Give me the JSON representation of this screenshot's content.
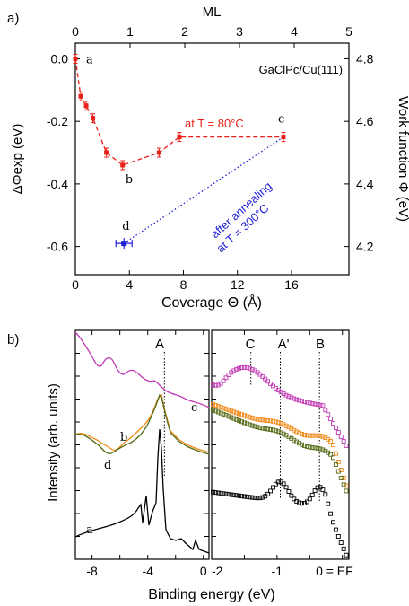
{
  "chart_data": [
    {
      "type": "scatter",
      "panel_label": "a)",
      "annotation": "GaClPc/Cu(111)",
      "xlabel": "Coverage Θ (Å)",
      "xticks": [
        "0",
        "4",
        "8",
        "12",
        "16"
      ],
      "xlim": [
        0,
        20.25
      ],
      "top_xlabel": "ML",
      "top_xticks": [
        "0",
        "1",
        "2",
        "3",
        "4",
        "5"
      ],
      "top_xlim": [
        0,
        5
      ],
      "ylabel": "ΔΦexp (eV)",
      "yticks": [
        "0.0",
        "-0.2",
        "-0.4",
        "-0.6"
      ],
      "ylim": [
        -0.69,
        0.05
      ],
      "right_ylabel": "Work function Φ (eV)",
      "right_yticks": [
        "4.8",
        "4.6",
        "4.4",
        "4.2"
      ],
      "right_ylim": [
        4.11,
        4.85
      ],
      "series": [
        {
          "name": "at T = 80°C",
          "color": "#e8201a",
          "style": "dashed",
          "x": [
            0.0,
            0.4,
            0.8,
            1.3,
            2.3,
            3.5,
            6.2,
            7.7,
            15.4
          ],
          "y": [
            0.0,
            -0.12,
            -0.15,
            -0.19,
            -0.3,
            -0.34,
            -0.3,
            -0.25,
            -0.25
          ]
        },
        {
          "name": "after annealing at T = 300°C",
          "color": "#1f1fd6",
          "style": "dotted",
          "x": [
            3.6,
            15.4
          ],
          "y": [
            -0.59,
            -0.25
          ]
        }
      ],
      "point_labels": [
        {
          "text": "a",
          "x": 0.0,
          "y": 0.0
        },
        {
          "text": "b",
          "x": 3.5,
          "y": -0.34
        },
        {
          "text": "c",
          "x": 15.4,
          "y": -0.25
        },
        {
          "text": "d",
          "x": 3.6,
          "y": -0.59
        }
      ],
      "series_labels": [
        "at T = 80°C",
        "after annealing",
        "at T = 300°C"
      ]
    },
    {
      "type": "line",
      "panel_label": "b)",
      "ylabel": "Intensity (arb. units)",
      "xlabel": "Binding energy (eV)",
      "left_xticks": [
        "-8",
        "-4",
        "0"
      ],
      "left_xlim": [
        -9.2,
        0.4
      ],
      "right_xticks": [
        "-2",
        "-1",
        "0 = EF"
      ],
      "right_xlim": [
        -2.0,
        0.1
      ],
      "peak_labels": [
        "A",
        "C",
        "A'",
        "B"
      ],
      "curve_labels": [
        "a",
        "b",
        "c",
        "d"
      ],
      "series": [
        {
          "name": "a",
          "color": "#000000"
        },
        {
          "name": "b",
          "color": "#f08a17"
        },
        {
          "name": "c",
          "color": "#c23bb5"
        },
        {
          "name": "d",
          "color": "#556b15"
        }
      ]
    }
  ]
}
